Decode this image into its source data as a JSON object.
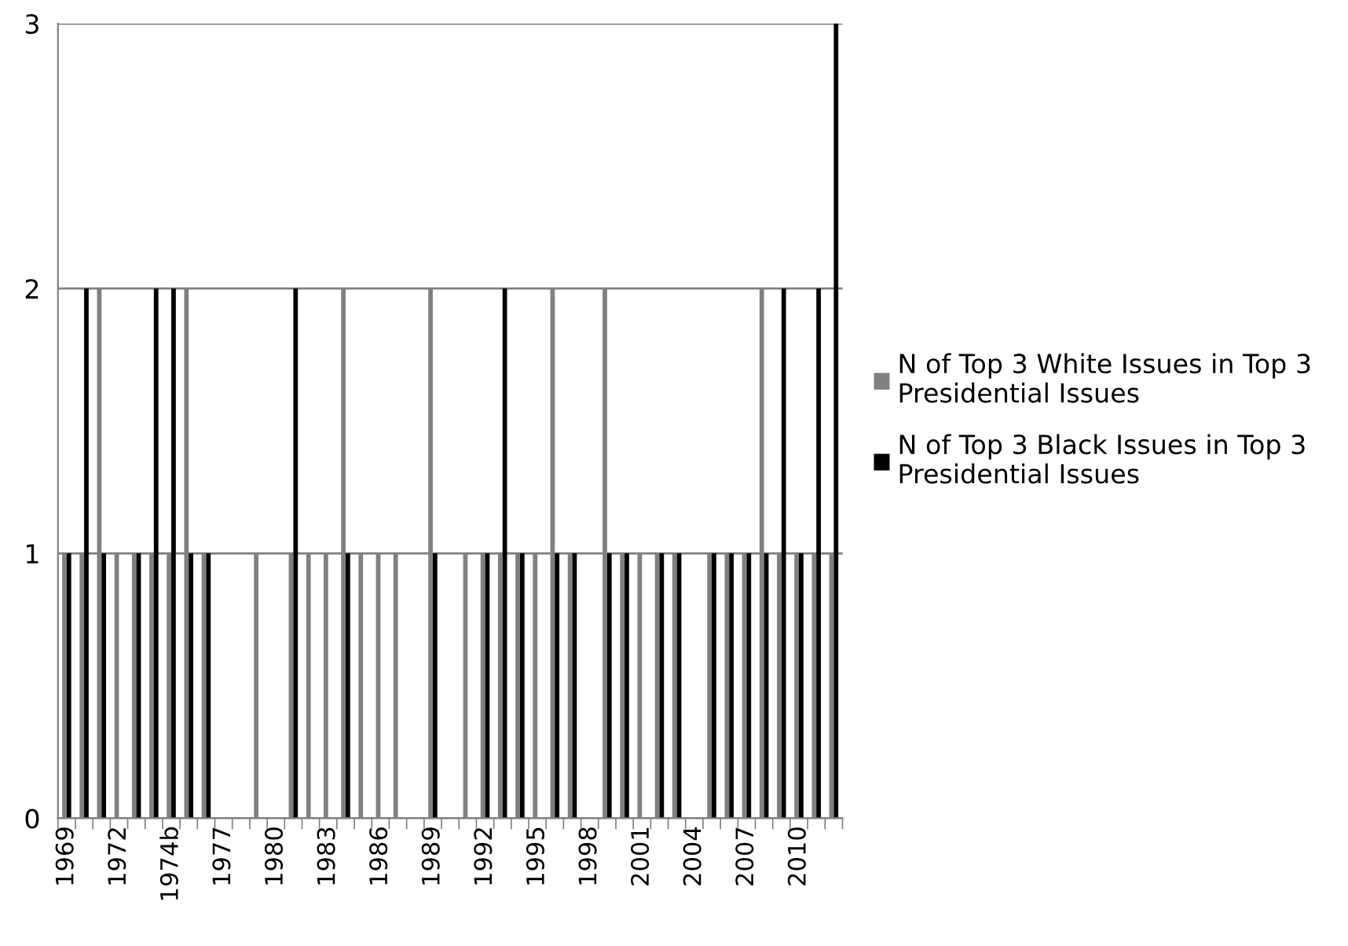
{
  "chart_data": {
    "type": "bar",
    "categories": [
      "1969",
      null,
      null,
      "1972",
      null,
      null,
      "1974b",
      null,
      null,
      "1977",
      null,
      null,
      "1980",
      null,
      null,
      "1983",
      null,
      null,
      "1986",
      null,
      null,
      "1989",
      null,
      null,
      "1992",
      null,
      null,
      "1995",
      null,
      null,
      "1998",
      null,
      null,
      "2001",
      null,
      null,
      "2004",
      null,
      null,
      "2007",
      null,
      null,
      "2010",
      null,
      null
    ],
    "series": [
      {
        "name": "N of Top 3 White Issues in Top 3 Presidential Issues",
        "color": "#808080",
        "values": [
          1,
          1,
          2,
          1,
          1,
          1,
          1,
          2,
          1,
          0,
          0,
          1,
          0,
          1,
          1,
          1,
          2,
          1,
          1,
          1,
          0,
          2,
          0,
          1,
          1,
          1,
          1,
          1,
          2,
          1,
          0,
          2,
          1,
          1,
          1,
          1,
          0,
          1,
          1,
          1,
          2,
          1,
          1,
          1,
          1
        ]
      },
      {
        "name": "N of Top 3 Black Issues in Top 3 Presidential Issues",
        "color": "#000000",
        "values": [
          1,
          2,
          1,
          0,
          1,
          2,
          2,
          1,
          1,
          0,
          0,
          0,
          0,
          2,
          0,
          0,
          1,
          0,
          0,
          0,
          0,
          1,
          0,
          0,
          1,
          2,
          1,
          0,
          1,
          1,
          0,
          1,
          1,
          0,
          1,
          1,
          0,
          1,
          1,
          1,
          1,
          2,
          1,
          2,
          3
        ]
      }
    ],
    "ylim": [
      0,
      3
    ],
    "yticks": [
      0,
      1,
      2,
      3
    ],
    "grid": "y",
    "legend": "right"
  }
}
